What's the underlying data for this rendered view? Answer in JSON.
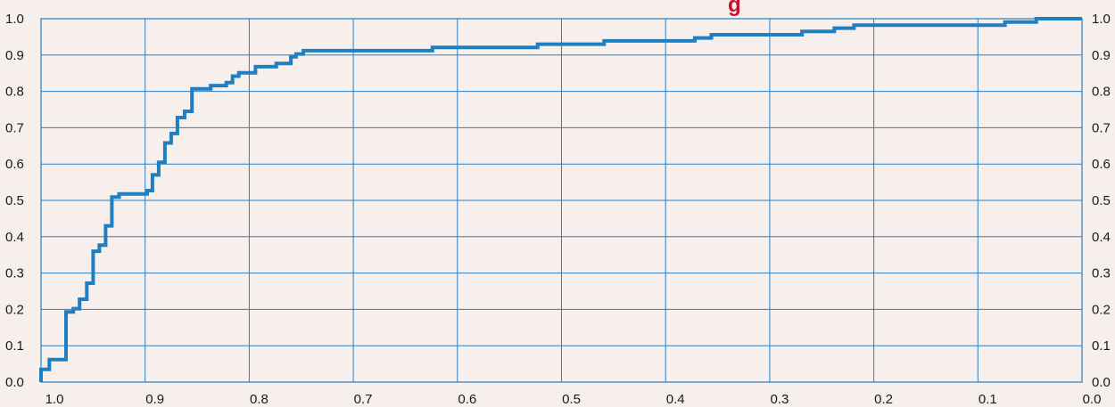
{
  "chart_data": {
    "type": "line",
    "step": true,
    "x_reversed": true,
    "xlim": [
      0.0,
      1.0
    ],
    "ylim": [
      0.0,
      1.0
    ],
    "grid": true,
    "title_partial_visible": "g",
    "xticks": [
      "1.0",
      "0.9",
      "0.8",
      "0.7",
      "0.6",
      "0.5",
      "0.4",
      "0.3",
      "0.2",
      "0.1",
      "0.0"
    ],
    "yticks_left": [
      "0.0",
      "0.1",
      "0.2",
      "0.3",
      "0.4",
      "0.5",
      "0.6",
      "0.7",
      "0.8",
      "0.9",
      "1.0"
    ],
    "yticks_right": [
      "0.0",
      "0.1",
      "0.2",
      "0.3",
      "0.4",
      "0.5",
      "0.6",
      "0.7",
      "0.8",
      "0.9",
      "1.0"
    ],
    "series": [
      {
        "color": "#1f7fc0",
        "points": [
          [
            1.0,
            0.0
          ],
          [
            1.0,
            0.035
          ],
          [
            0.992,
            0.035
          ],
          [
            0.992,
            0.062
          ],
          [
            0.976,
            0.062
          ],
          [
            0.976,
            0.193
          ],
          [
            0.969,
            0.193
          ],
          [
            0.969,
            0.202
          ],
          [
            0.963,
            0.202
          ],
          [
            0.963,
            0.228
          ],
          [
            0.956,
            0.228
          ],
          [
            0.956,
            0.272
          ],
          [
            0.95,
            0.272
          ],
          [
            0.95,
            0.36
          ],
          [
            0.944,
            0.36
          ],
          [
            0.944,
            0.377
          ],
          [
            0.938,
            0.377
          ],
          [
            0.938,
            0.43
          ],
          [
            0.932,
            0.43
          ],
          [
            0.932,
            0.509
          ],
          [
            0.925,
            0.509
          ],
          [
            0.925,
            0.518
          ],
          [
            0.898,
            0.518
          ],
          [
            0.898,
            0.527
          ],
          [
            0.893,
            0.527
          ],
          [
            0.893,
            0.57
          ],
          [
            0.887,
            0.57
          ],
          [
            0.887,
            0.605
          ],
          [
            0.881,
            0.605
          ],
          [
            0.881,
            0.658
          ],
          [
            0.875,
            0.658
          ],
          [
            0.875,
            0.684
          ],
          [
            0.869,
            0.684
          ],
          [
            0.869,
            0.728
          ],
          [
            0.862,
            0.728
          ],
          [
            0.862,
            0.745
          ],
          [
            0.855,
            0.745
          ],
          [
            0.855,
            0.807
          ],
          [
            0.837,
            0.807
          ],
          [
            0.837,
            0.816
          ],
          [
            0.822,
            0.816
          ],
          [
            0.822,
            0.824
          ],
          [
            0.816,
            0.824
          ],
          [
            0.816,
            0.842
          ],
          [
            0.81,
            0.842
          ],
          [
            0.81,
            0.851
          ],
          [
            0.794,
            0.851
          ],
          [
            0.794,
            0.868
          ],
          [
            0.774,
            0.868
          ],
          [
            0.774,
            0.877
          ],
          [
            0.76,
            0.877
          ],
          [
            0.76,
            0.895
          ],
          [
            0.755,
            0.895
          ],
          [
            0.755,
            0.903
          ],
          [
            0.748,
            0.903
          ],
          [
            0.748,
            0.912
          ],
          [
            0.624,
            0.912
          ],
          [
            0.624,
            0.921
          ],
          [
            0.523,
            0.921
          ],
          [
            0.523,
            0.93
          ],
          [
            0.459,
            0.93
          ],
          [
            0.459,
            0.939
          ],
          [
            0.372,
            0.939
          ],
          [
            0.372,
            0.947
          ],
          [
            0.356,
            0.947
          ],
          [
            0.356,
            0.956
          ],
          [
            0.269,
            0.956
          ],
          [
            0.269,
            0.965
          ],
          [
            0.238,
            0.965
          ],
          [
            0.238,
            0.974
          ],
          [
            0.219,
            0.974
          ],
          [
            0.219,
            0.982
          ],
          [
            0.074,
            0.982
          ],
          [
            0.074,
            0.991
          ],
          [
            0.044,
            0.991
          ],
          [
            0.044,
            1.0
          ],
          [
            0.0,
            1.0
          ]
        ]
      }
    ]
  },
  "colors": {
    "background": "#f6efec",
    "grid": "#2a7fc4",
    "line": "#1f7fc0",
    "title": "#c8102e"
  }
}
